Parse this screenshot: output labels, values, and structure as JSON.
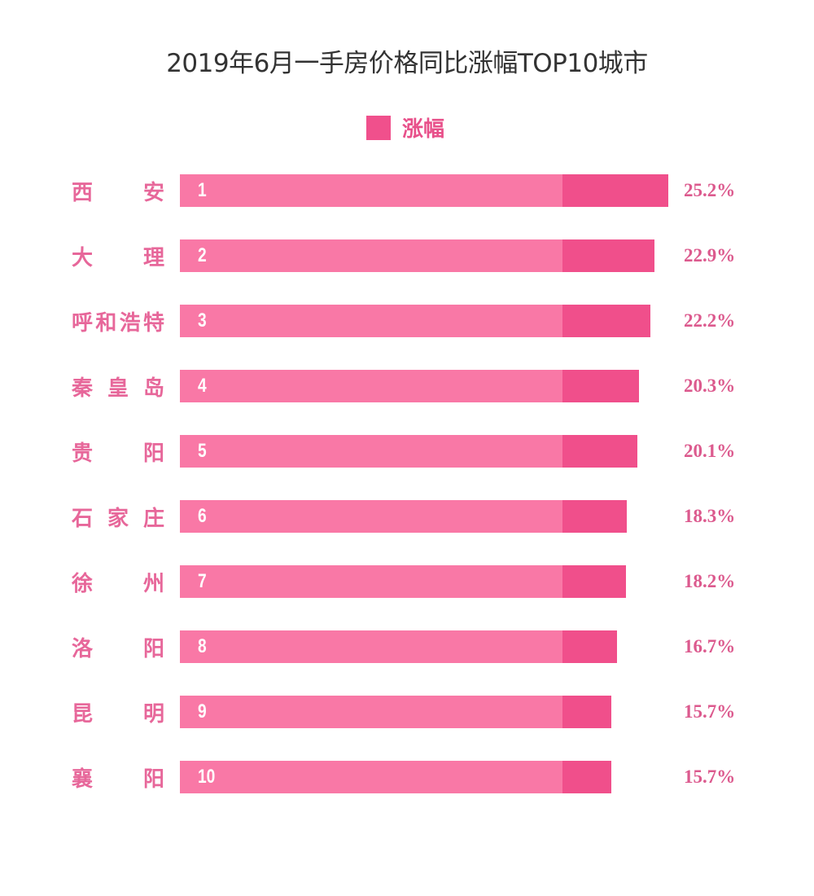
{
  "chart_data": {
    "type": "bar",
    "orientation": "horizontal",
    "title": "2019年6月一手房价格同比涨幅TOP10城市",
    "legend": [
      {
        "label": "涨幅",
        "color": "#f0508c"
      }
    ],
    "legend_position": "top-center",
    "xlabel": "",
    "ylabel": "",
    "grid": false,
    "unit": "%",
    "categories": [
      "西安",
      "大理",
      "呼和浩特",
      "秦皇岛",
      "贵阳",
      "石家庄",
      "徐州",
      "洛阳",
      "昆明",
      "襄阳"
    ],
    "ranks": [
      "1",
      "2",
      "3",
      "4",
      "5",
      "6",
      "7",
      "8",
      "9",
      "10"
    ],
    "values": [
      25.2,
      22.9,
      22.2,
      20.3,
      20.1,
      18.3,
      18.2,
      16.7,
      15.7,
      15.7
    ],
    "value_labels": [
      "25.2%",
      "22.9%",
      "22.2%",
      "20.3%",
      "20.1%",
      "18.3%",
      "18.2%",
      "16.7%",
      "15.7%",
      "15.7%"
    ]
  },
  "colors": {
    "bar_light": "#f978a6",
    "bar_dark": "#f04f8b",
    "label": "#e7679a",
    "value": "#dc5a8e",
    "title": "#333333"
  }
}
